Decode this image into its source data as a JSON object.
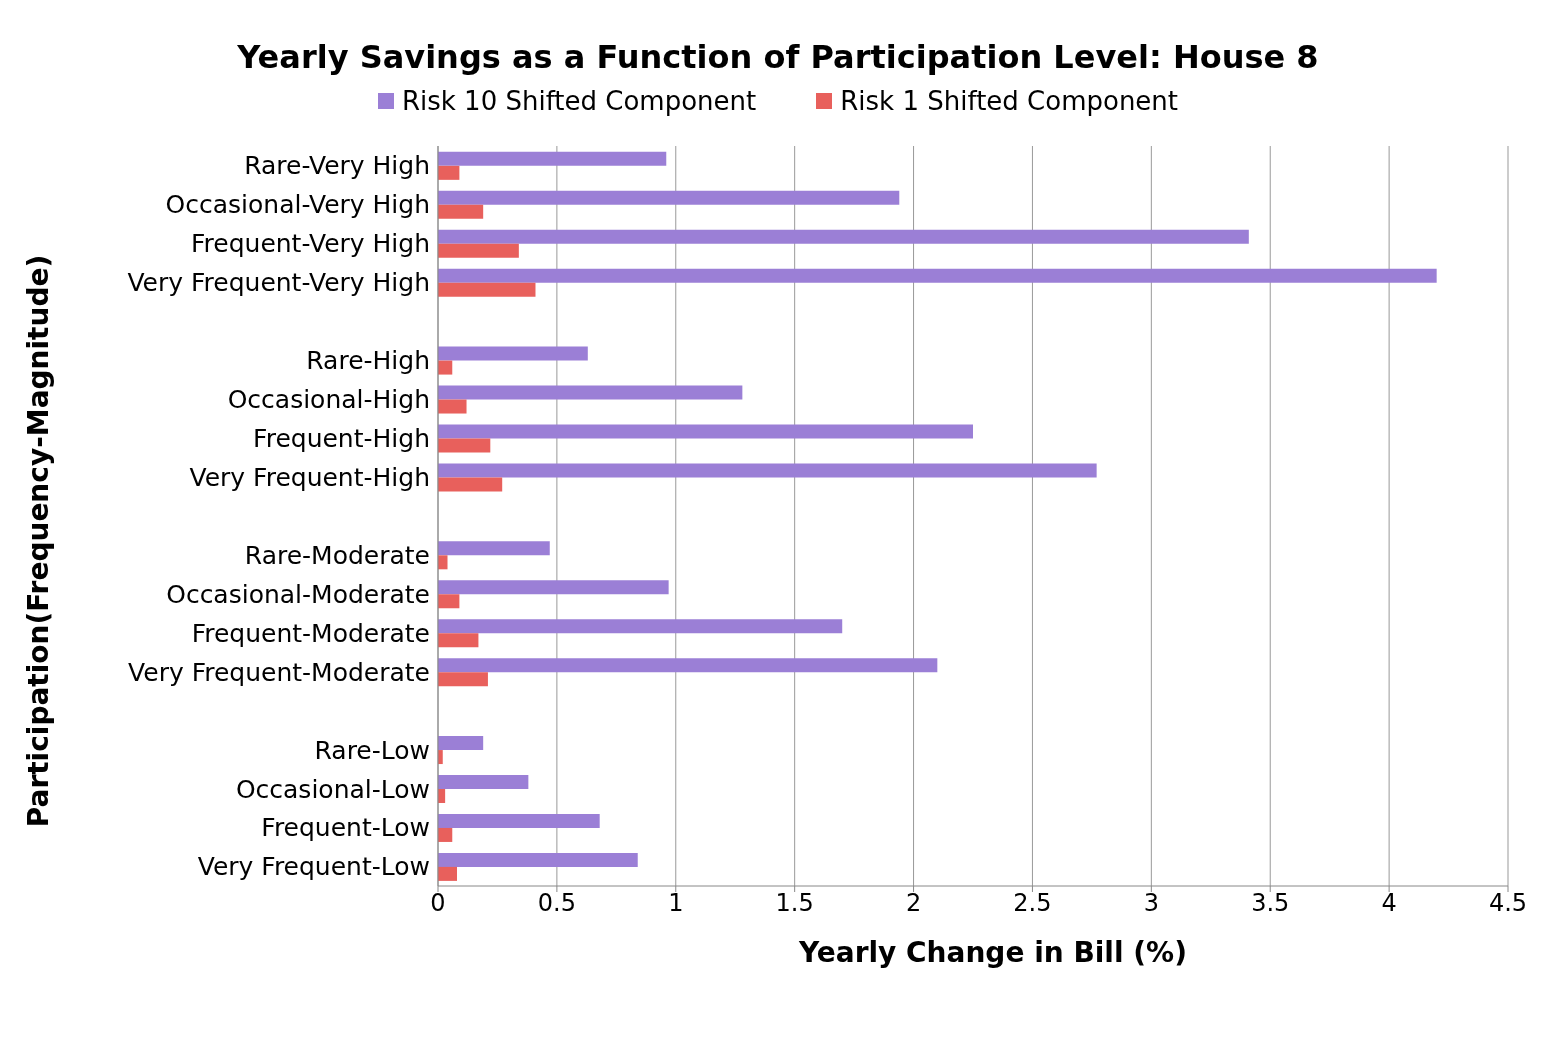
{
  "chart_data": {
    "type": "bar",
    "orientation": "horizontal",
    "title": "Yearly Savings as a Function of Participation Level: House 8",
    "xlabel": "Yearly Change in Bill (%)",
    "ylabel": "Participation(Frequency-Magnitude)",
    "categories": [
      "Rare-Very High",
      "Occasional-Very High",
      "Frequent-Very High",
      "Very Frequent-Very High",
      null,
      "Rare-High",
      "Occasional-High",
      "Frequent-High",
      "Very Frequent-High",
      null,
      "Rare-Moderate",
      "Occasional-Moderate",
      "Frequent-Moderate",
      "Very Frequent-Moderate",
      null,
      "Rare-Low",
      "Occasional-Low",
      "Frequent-Low",
      "Very Frequent-Low"
    ],
    "series": [
      {
        "name": "Risk 10 Shifted Component",
        "color": "#9b7fd6",
        "values": [
          0.96,
          1.94,
          3.41,
          4.2,
          null,
          0.63,
          1.28,
          2.25,
          2.77,
          null,
          0.47,
          0.97,
          1.7,
          2.1,
          null,
          0.19,
          0.38,
          0.68,
          0.84
        ]
      },
      {
        "name": "Risk 1 Shifted Component",
        "color": "#e8605c",
        "values": [
          0.09,
          0.19,
          0.34,
          0.41,
          null,
          0.06,
          0.12,
          0.22,
          0.27,
          null,
          0.04,
          0.09,
          0.17,
          0.21,
          null,
          0.02,
          0.03,
          0.06,
          0.08
        ]
      }
    ],
    "xlim": [
      0,
      4.5
    ],
    "xticks": [
      0,
      0.5,
      1,
      1.5,
      2,
      2.5,
      3,
      3.5,
      4,
      4.5
    ],
    "grid": "x",
    "legend": "top"
  }
}
